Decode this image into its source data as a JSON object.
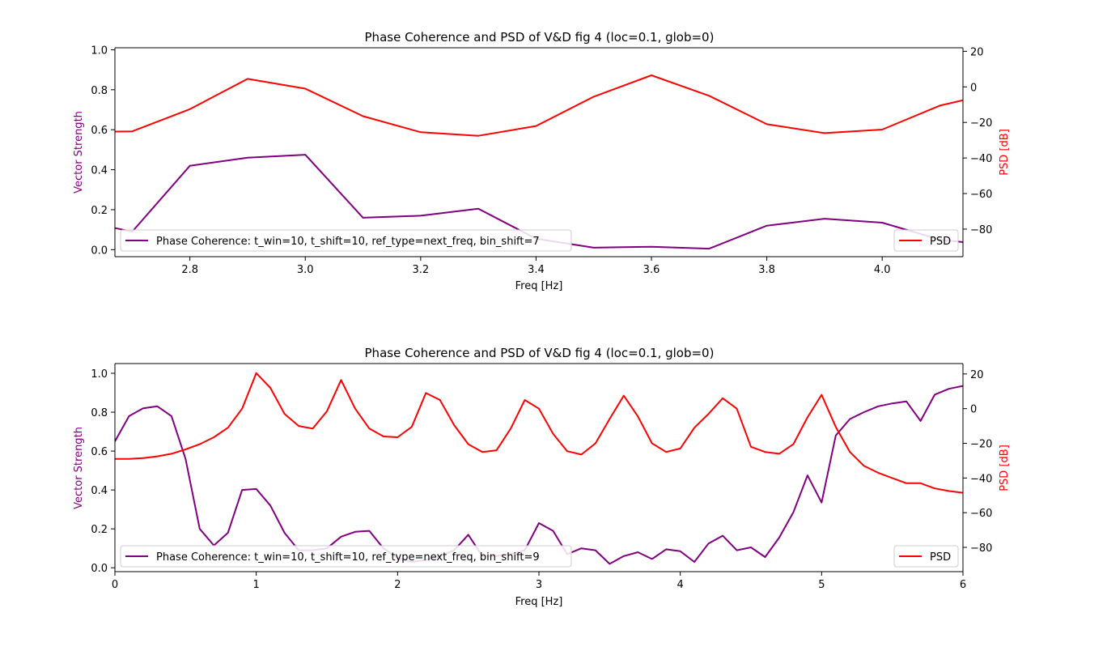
{
  "colors": {
    "vector_strength": "#800080",
    "psd": "#ff0000",
    "axes": "#000000",
    "background": "#ffffff"
  },
  "chart_data": [
    {
      "type": "line",
      "title": "Phase Coherence and PSD of V&D fig 4 (loc=0.1, glob=0)",
      "xlabel": "Freq [Hz]",
      "ylabel_left": "Vector Strength",
      "ylabel_right": "PSD [dB]",
      "xlim": [
        2.67,
        4.14
      ],
      "ylim_left": [
        -0.035,
        1.01
      ],
      "ylim_right": [
        -95.5,
        22
      ],
      "xticks": [
        2.8,
        3.0,
        3.2,
        3.4,
        3.6,
        3.8,
        4.0
      ],
      "xtick_labels": [
        "2.8",
        "3.0",
        "3.2",
        "3.4",
        "3.6",
        "3.8",
        "4.0"
      ],
      "yticks_left": [
        0.0,
        0.2,
        0.4,
        0.6,
        0.8,
        1.0
      ],
      "ytick_labels_left": [
        "0.0",
        "0.2",
        "0.4",
        "0.6",
        "0.8",
        "1.0"
      ],
      "yticks_right": [
        -80,
        -60,
        -40,
        -20,
        0,
        20
      ],
      "ytick_labels_right": [
        "−80",
        "−60",
        "−40",
        "−20",
        "0",
        "20"
      ],
      "grid": false,
      "series": [
        {
          "name": "Phase Coherence: t_win=10, t_shift=10, ref_type=next_freq, bin_shift=7",
          "axis": "left",
          "color": "#800080",
          "legend_position": "lower left",
          "x": [
            2.6,
            2.7,
            2.8,
            2.9,
            3.0,
            3.1,
            3.2,
            3.3,
            3.4,
            3.5,
            3.6,
            3.7,
            3.8,
            3.9,
            4.0,
            4.1,
            4.2
          ],
          "y": [
            0.15,
            0.09,
            0.42,
            0.46,
            0.475,
            0.16,
            0.17,
            0.205,
            0.055,
            0.01,
            0.015,
            0.005,
            0.12,
            0.155,
            0.135,
            0.05,
            0.02
          ]
        },
        {
          "name": "PSD",
          "axis": "right",
          "color": "#ff0000",
          "legend_position": "lower right",
          "x": [
            2.6,
            2.7,
            2.8,
            2.9,
            3.0,
            3.1,
            3.2,
            3.3,
            3.4,
            3.5,
            3.6,
            3.7,
            3.8,
            3.9,
            4.0,
            4.1,
            4.2
          ],
          "y": [
            -25.5,
            -25,
            -12.5,
            4.5,
            -1,
            -16.5,
            -25.5,
            -27.5,
            -22,
            -5.5,
            6.5,
            -5,
            -21,
            -26,
            -24,
            -10.5,
            -3
          ]
        }
      ]
    },
    {
      "type": "line",
      "title": "Phase Coherence and PSD of V&D fig 4 (loc=0.1, glob=0)",
      "xlabel": "Freq [Hz]",
      "ylabel_left": "Vector Strength",
      "ylabel_right": "PSD [dB]",
      "xlim": [
        0,
        6
      ],
      "ylim_left": [
        -0.02,
        1.05
      ],
      "ylim_right": [
        -94,
        26
      ],
      "xticks": [
        0,
        1,
        2,
        3,
        4,
        5,
        6
      ],
      "xtick_labels": [
        "0",
        "1",
        "2",
        "3",
        "4",
        "5",
        "6"
      ],
      "yticks_left": [
        0.0,
        0.2,
        0.4,
        0.6,
        0.8,
        1.0
      ],
      "ytick_labels_left": [
        "0.0",
        "0.2",
        "0.4",
        "0.6",
        "0.8",
        "1.0"
      ],
      "yticks_right": [
        -80,
        -60,
        -40,
        -20,
        0,
        20
      ],
      "ytick_labels_right": [
        "−80",
        "−60",
        "−40",
        "−20",
        "0",
        "20"
      ],
      "grid": false,
      "series": [
        {
          "name": "Phase Coherence: t_win=10, t_shift=10, ref_type=next_freq, bin_shift=9",
          "axis": "left",
          "color": "#800080",
          "legend_position": "lower left",
          "x": [
            0,
            0.1,
            0.2,
            0.3,
            0.4,
            0.5,
            0.6,
            0.7,
            0.8,
            0.9,
            1.0,
            1.1,
            1.2,
            1.3,
            1.4,
            1.5,
            1.6,
            1.7,
            1.8,
            1.9,
            2.0,
            2.1,
            2.2,
            2.3,
            2.4,
            2.5,
            2.6,
            2.7,
            2.8,
            2.9,
            3.0,
            3.1,
            3.2,
            3.3,
            3.4,
            3.5,
            3.6,
            3.7,
            3.8,
            3.9,
            4.0,
            4.1,
            4.2,
            4.3,
            4.4,
            4.5,
            4.6,
            4.7,
            4.8,
            4.9,
            5.0,
            5.1,
            5.2,
            5.3,
            5.4,
            5.5,
            5.6,
            5.7,
            5.8,
            5.9,
            6.0
          ],
          "y": [
            0.65,
            0.78,
            0.82,
            0.83,
            0.78,
            0.56,
            0.2,
            0.115,
            0.18,
            0.4,
            0.405,
            0.32,
            0.18,
            0.09,
            0.09,
            0.1,
            0.16,
            0.185,
            0.19,
            0.1,
            0.05,
            0.03,
            0.04,
            0.06,
            0.09,
            0.17,
            0.06,
            0.06,
            0.07,
            0.09,
            0.23,
            0.19,
            0.07,
            0.1,
            0.09,
            0.02,
            0.06,
            0.08,
            0.045,
            0.095,
            0.085,
            0.03,
            0.125,
            0.165,
            0.09,
            0.105,
            0.055,
            0.155,
            0.285,
            0.475,
            0.335,
            0.68,
            0.765,
            0.8,
            0.83,
            0.845,
            0.855,
            0.755,
            0.89,
            0.92,
            0.935
          ]
        },
        {
          "name": "PSD",
          "axis": "right",
          "color": "#ff0000",
          "legend_position": "lower right",
          "x": [
            0,
            0.1,
            0.2,
            0.3,
            0.4,
            0.5,
            0.6,
            0.7,
            0.8,
            0.9,
            1.0,
            1.1,
            1.2,
            1.3,
            1.4,
            1.5,
            1.6,
            1.7,
            1.8,
            1.9,
            2.0,
            2.1,
            2.2,
            2.3,
            2.4,
            2.5,
            2.6,
            2.7,
            2.8,
            2.9,
            3.0,
            3.1,
            3.2,
            3.3,
            3.4,
            3.5,
            3.6,
            3.7,
            3.8,
            3.9,
            4.0,
            4.1,
            4.2,
            4.3,
            4.4,
            4.5,
            4.6,
            4.7,
            4.8,
            4.9,
            5.0,
            5.1,
            5.2,
            5.3,
            5.4,
            5.5,
            5.6,
            5.7,
            5.8,
            5.9,
            6.0
          ],
          "y": [
            -29,
            -29,
            -28.5,
            -27.5,
            -26,
            -23.5,
            -20.5,
            -16.5,
            -11,
            0,
            20.5,
            12,
            -3,
            -10,
            -11.5,
            -1.5,
            16.5,
            0,
            -11.5,
            -16,
            -16.5,
            -10.5,
            9,
            5,
            -9.5,
            -20.5,
            -25,
            -24,
            -11.5,
            5,
            0,
            -14.5,
            -24.5,
            -26.5,
            -20,
            -6,
            7.5,
            -4.5,
            -20,
            -25,
            -23,
            -11,
            -3,
            6,
            0,
            -22,
            -25,
            -26,
            -20.5,
            -5,
            8,
            -10.5,
            -25,
            -33,
            -37,
            -40,
            -43,
            -43,
            -46,
            -47.5,
            -48.5
          ]
        }
      ]
    }
  ]
}
